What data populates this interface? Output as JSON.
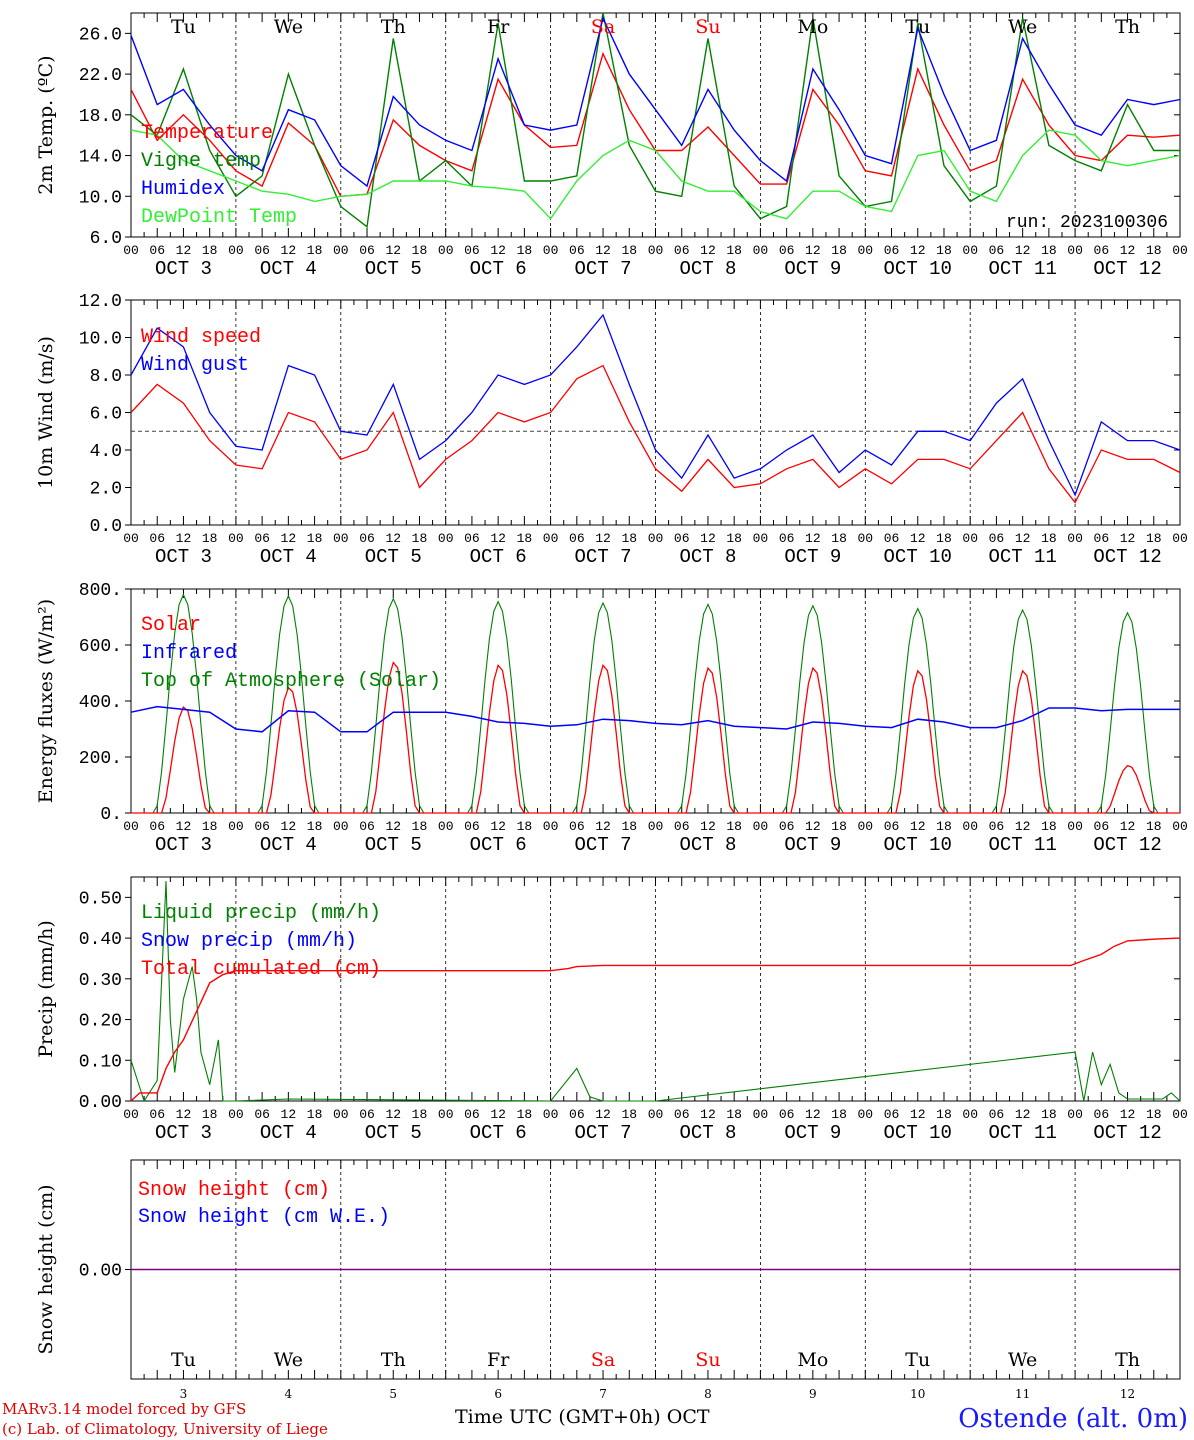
{
  "meta": {
    "model_line": "MARv3.14 model forced by GFS",
    "credit_line": "(c) Lab. of Climatology, University of Liege",
    "time_axis_label": "Time UTC (GMT+0h)",
    "month_label": "OCT",
    "station": "Ostende (alt. 0m)"
  },
  "days": [
    {
      "day": "Tu",
      "date_label": "OCT  3",
      "num": "3",
      "weekend": false
    },
    {
      "day": "We",
      "date_label": "OCT  4",
      "num": "4",
      "weekend": false
    },
    {
      "day": "Th",
      "date_label": "OCT  5",
      "num": "5",
      "weekend": false
    },
    {
      "day": "Fr",
      "date_label": "OCT  6",
      "num": "6",
      "weekend": false
    },
    {
      "day": "Sa",
      "date_label": "OCT  7",
      "num": "7",
      "weekend": true
    },
    {
      "day": "Su",
      "date_label": "OCT  8",
      "num": "8",
      "weekend": true
    },
    {
      "day": "Mo",
      "date_label": "OCT  9",
      "num": "9",
      "weekend": false
    },
    {
      "day": "Tu",
      "date_label": "OCT 10",
      "num": "10",
      "weekend": false
    },
    {
      "day": "We",
      "date_label": "OCT 11",
      "num": "11",
      "weekend": false
    },
    {
      "day": "Th",
      "date_label": "OCT 12",
      "num": "12",
      "weekend": false
    }
  ],
  "hour_labels": [
    "00",
    "06",
    "12",
    "18"
  ],
  "last_hour_label": "00",
  "colors": {
    "red": "#ff0000",
    "green": "#008000",
    "blue": "#0000ff",
    "lightgreen": "#33ee33",
    "purple": "#800080",
    "weekend": "#ff0000"
  },
  "chart_data": [
    {
      "type": "line",
      "id": "temp",
      "ylabel": "2m Temp. (ºC)",
      "ylim": [
        6,
        28
      ],
      "yticks": [
        "6.0",
        "10.0",
        "14.0",
        "18.0",
        "22.0",
        "26.0"
      ],
      "ytick_values": [
        6,
        10,
        14,
        18,
        22,
        26
      ],
      "run_label": "run: 2023100306",
      "show_day_names": true,
      "hours": [
        0,
        6,
        12,
        18,
        24,
        30,
        36,
        42,
        48,
        54,
        60,
        66,
        72,
        78,
        84,
        90,
        96,
        102,
        108,
        114,
        120,
        126,
        132,
        138,
        144,
        150,
        156,
        162,
        168,
        174,
        180,
        186,
        192,
        198,
        204,
        210,
        216,
        222,
        228,
        234,
        240
      ],
      "series": [
        {
          "name": "Temperature",
          "color": "#ff0000",
          "values": [
            20.5,
            15.5,
            18,
            15.5,
            12.5,
            11,
            17.2,
            15,
            10,
            10.2,
            17.5,
            15,
            13.5,
            12.5,
            21.5,
            17,
            14.8,
            15,
            24,
            18.5,
            14.5,
            14.5,
            16.8,
            14,
            11.2,
            11.2,
            20.5,
            17,
            12.5,
            12,
            22.5,
            17,
            12.5,
            13.5,
            21.5,
            17,
            14,
            13.5,
            16,
            15.8,
            16
          ]
        },
        {
          "name": "Vigne temp",
          "color": "#008000",
          "values": [
            18,
            16,
            22.5,
            14.5,
            10,
            12,
            22,
            15,
            9,
            7,
            25.5,
            11.5,
            13.5,
            11,
            27,
            11.5,
            11.5,
            12,
            28,
            15,
            10.5,
            10,
            25.5,
            11,
            7.8,
            9,
            27.5,
            12,
            9,
            9.5,
            27,
            13,
            9.5,
            11,
            27.5,
            15,
            13.5,
            12.5,
            19,
            14.5,
            14.5
          ]
        },
        {
          "name": "Humidex",
          "color": "#0000ff",
          "values": [
            25.8,
            19,
            20.5,
            17,
            14,
            12.5,
            18.5,
            17.5,
            13,
            11,
            19.8,
            17,
            15.5,
            14.5,
            23.5,
            17,
            16.5,
            17,
            27.5,
            22,
            18.5,
            15,
            20.5,
            16.5,
            13.5,
            11.5,
            22.5,
            18.5,
            14,
            13.2,
            26.5,
            20,
            14.5,
            15.5,
            25.5,
            21,
            17,
            16,
            19.5,
            19,
            19.5
          ]
        },
        {
          "name": "DewPoint Temp",
          "color": "#33ee33",
          "values": [
            16.5,
            16,
            13.5,
            12.5,
            11.5,
            10.5,
            10.2,
            9.5,
            10,
            10.2,
            11.5,
            11.5,
            11.5,
            11,
            10.8,
            10.5,
            7.8,
            11.5,
            14,
            15.5,
            14.5,
            11.5,
            10.5,
            10.5,
            8.5,
            7.8,
            10.5,
            10.5,
            9,
            8.5,
            14,
            14.5,
            10.5,
            9.5,
            14,
            16.5,
            16,
            13.5,
            13,
            13.5,
            14
          ]
        }
      ]
    },
    {
      "type": "line",
      "id": "wind",
      "ylabel": "10m Wind (m/s)",
      "ylim": [
        0,
        12
      ],
      "yticks": [
        "0.0",
        "2.0",
        "4.0",
        "6.0",
        "8.0",
        "10.0",
        "12.0"
      ],
      "ytick_values": [
        0,
        2,
        4,
        6,
        8,
        10,
        12
      ],
      "reference_line": 5,
      "hours": [
        0,
        6,
        12,
        18,
        24,
        30,
        36,
        42,
        48,
        54,
        60,
        66,
        72,
        78,
        84,
        90,
        96,
        102,
        108,
        114,
        120,
        126,
        132,
        138,
        144,
        150,
        156,
        162,
        168,
        174,
        180,
        186,
        192,
        198,
        204,
        210,
        216,
        222,
        228,
        234,
        240
      ],
      "series": [
        {
          "name": "Wind speed",
          "color": "#ff0000",
          "values": [
            6,
            7.5,
            6.5,
            4.5,
            3.2,
            3,
            6,
            5.5,
            3.5,
            4,
            6,
            2,
            3.5,
            4.5,
            6,
            5.5,
            6,
            7.8,
            8.5,
            5.5,
            3,
            1.8,
            3.5,
            2,
            2.2,
            3,
            3.5,
            2,
            3,
            2.2,
            3.5,
            3.5,
            3,
            4.5,
            6,
            3,
            1.2,
            4,
            3.5,
            3.5,
            2.8
          ]
        },
        {
          "name": "Wind gust",
          "color": "#0000ff",
          "values": [
            8,
            10.5,
            9.5,
            6,
            4.2,
            4,
            8.5,
            8,
            5,
            4.8,
            7.5,
            3.5,
            4.5,
            6,
            8,
            7.5,
            8,
            9.5,
            11.2,
            7.5,
            4,
            2.5,
            4.8,
            2.5,
            3,
            4,
            4.8,
            2.8,
            4,
            3.2,
            5,
            5,
            4.5,
            6.5,
            7.8,
            4.5,
            1.6,
            5.5,
            4.5,
            4.5,
            4
          ]
        }
      ]
    },
    {
      "type": "line",
      "id": "flux",
      "ylabel": "Energy fluxes (W/m²)",
      "ylim": [
        0,
        800
      ],
      "yticks": [
        "0.",
        "200.",
        "400.",
        "600.",
        "800."
      ],
      "ytick_values": [
        0,
        200,
        400,
        600,
        800
      ],
      "solar_peaks": [
        380,
        450,
        540,
        530,
        530,
        520,
        520,
        510,
        510,
        170
      ],
      "toa_peaks": [
        780,
        775,
        765,
        755,
        750,
        745,
        740,
        730,
        725,
        715
      ],
      "hours": [
        0,
        6,
        12,
        18,
        24,
        30,
        36,
        42,
        48,
        54,
        60,
        66,
        72,
        78,
        84,
        90,
        96,
        102,
        108,
        114,
        120,
        126,
        132,
        138,
        144,
        150,
        156,
        162,
        168,
        174,
        180,
        186,
        192,
        198,
        204,
        210,
        216,
        222,
        228,
        234,
        240
      ],
      "series": [
        {
          "name": "Solar",
          "color": "#ff0000",
          "values": []
        },
        {
          "name": "Infrared",
          "color": "#0000ff",
          "values": [
            360,
            380,
            370,
            360,
            300,
            290,
            365,
            360,
            290,
            290,
            360,
            360,
            360,
            345,
            325,
            320,
            310,
            315,
            335,
            330,
            320,
            315,
            330,
            310,
            305,
            300,
            325,
            320,
            310,
            305,
            335,
            325,
            305,
            305,
            330,
            375,
            375,
            365,
            370,
            370,
            370
          ]
        },
        {
          "name": "Top of Atmosphere (Solar)",
          "color": "#008000",
          "values": []
        }
      ]
    },
    {
      "type": "line",
      "id": "precip",
      "ylabel": "Precip (mm/h)",
      "ylim": [
        0,
        0.55
      ],
      "yticks": [
        "0.00",
        "0.10",
        "0.20",
        "0.30",
        "0.40",
        "0.50"
      ],
      "ytick_values": [
        0,
        0.1,
        0.2,
        0.3,
        0.4,
        0.5
      ],
      "hours_liquid": [
        0,
        3,
        6,
        8,
        9,
        10,
        12,
        14,
        15,
        16,
        18,
        20,
        21,
        24,
        36,
        96,
        102,
        105,
        108,
        120,
        216,
        218,
        220,
        222,
        224,
        226,
        228,
        230,
        232,
        234,
        236,
        238,
        240
      ],
      "series": [
        {
          "name": "Liquid precip (mm/h)",
          "color": "#008000",
          "values": [
            0.1,
            0,
            0.05,
            0.54,
            0.2,
            0.07,
            0.25,
            0.33,
            0.25,
            0.12,
            0.04,
            0.15,
            0,
            0,
            0.005,
            0,
            0.08,
            0.01,
            0,
            0,
            0.12,
            0,
            0.12,
            0.04,
            0.09,
            0.02,
            0.005,
            0.005,
            0.005,
            0.005,
            0.005,
            0.02,
            0
          ]
        },
        {
          "name": "Snow precip (mm/h)",
          "color": "#0000ff",
          "values": []
        },
        {
          "name": "Total cumulated (cm)",
          "color": "#ff0000",
          "hours": [
            0,
            2,
            6,
            8,
            10,
            12,
            15,
            18,
            21,
            24,
            60,
            96,
            100,
            102,
            108,
            120,
            210,
            215,
            218,
            222,
            225,
            228,
            235,
            240
          ],
          "values": [
            0,
            0.02,
            0.02,
            0.08,
            0.12,
            0.15,
            0.22,
            0.29,
            0.31,
            0.32,
            0.32,
            0.32,
            0.325,
            0.33,
            0.333,
            0.333,
            0.333,
            0.333,
            0.345,
            0.36,
            0.38,
            0.393,
            0.398,
            0.4
          ]
        }
      ]
    },
    {
      "type": "line",
      "id": "snow",
      "ylabel": "Snow height (cm)",
      "ylim": [
        -1,
        1
      ],
      "yticks": [
        "0.00"
      ],
      "ytick_values": [
        0
      ],
      "series": [
        {
          "name": "Snow height (cm)",
          "color": "#ff0000",
          "values": [
            0,
            0
          ]
        },
        {
          "name": "Snow height (cm W.E.)",
          "color": "#0000ff",
          "values": [
            0,
            0
          ]
        }
      ]
    }
  ]
}
